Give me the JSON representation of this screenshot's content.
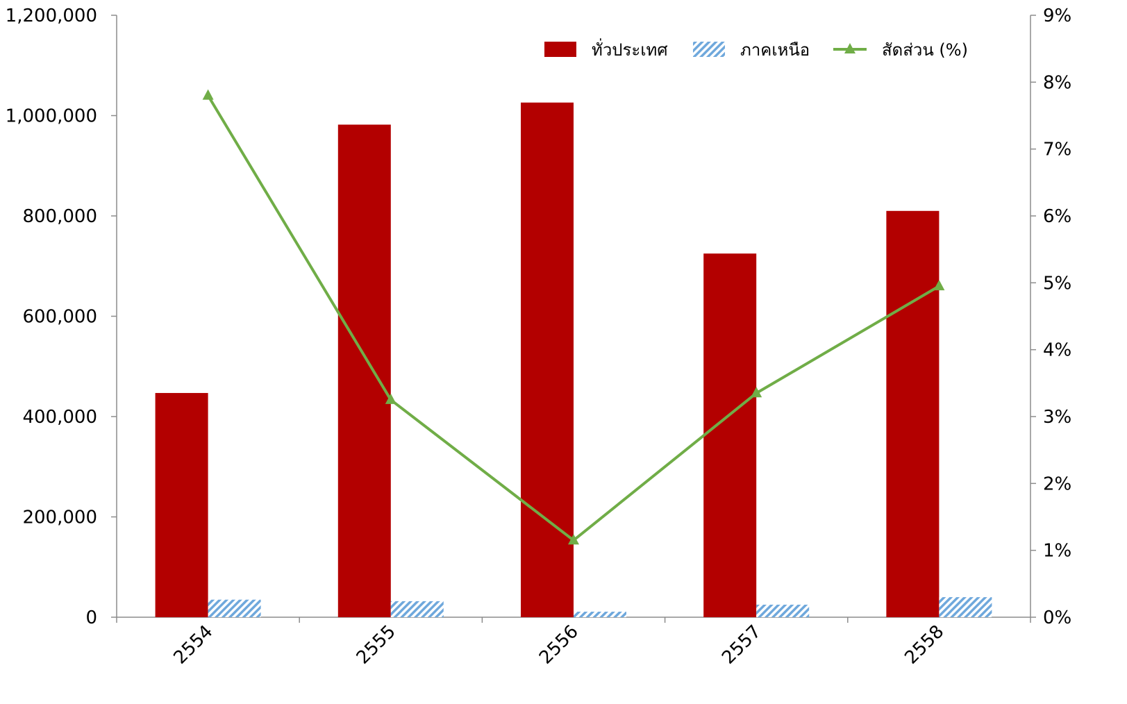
{
  "chart_data": {
    "type": "bar",
    "title": "",
    "xlabel": "",
    "categories": [
      "2554",
      "2555",
      "2556",
      "2557",
      "2558"
    ],
    "series": [
      {
        "name": "ทั่วประเทศ",
        "type": "bar",
        "axis": "left",
        "color": "#b30000",
        "values": [
          447000,
          982000,
          1026000,
          725000,
          810000
        ]
      },
      {
        "name": "ภาคเหนือ",
        "type": "bar",
        "axis": "left",
        "pattern": "diagonal-hatch",
        "color": "#6fa8dc",
        "values": [
          35000,
          32000,
          11000,
          25000,
          40000
        ]
      },
      {
        "name": "สัดส่วน (%)",
        "type": "line",
        "axis": "right",
        "marker": "triangle",
        "color": "#70ad47",
        "values": [
          7.8,
          3.25,
          1.15,
          3.35,
          4.95
        ]
      }
    ],
    "y_left": {
      "range": [
        0,
        1200000
      ],
      "ticks": [
        0,
        200000,
        400000,
        600000,
        800000,
        1000000,
        1200000
      ],
      "tick_labels": [
        "0",
        "200,000",
        "400,000",
        "600,000",
        "800,000",
        "1,000,000",
        "1,200,000"
      ]
    },
    "y_right": {
      "range": [
        0,
        9
      ],
      "ticks": [
        0,
        1,
        2,
        3,
        4,
        5,
        6,
        7,
        8,
        9
      ],
      "tick_labels": [
        "0%",
        "1%",
        "2%",
        "3%",
        "4%",
        "5%",
        "6%",
        "7%",
        "8%",
        "9%"
      ]
    },
    "grid": false,
    "legend": "top-right",
    "x_tick_rotation": "diagonal"
  }
}
